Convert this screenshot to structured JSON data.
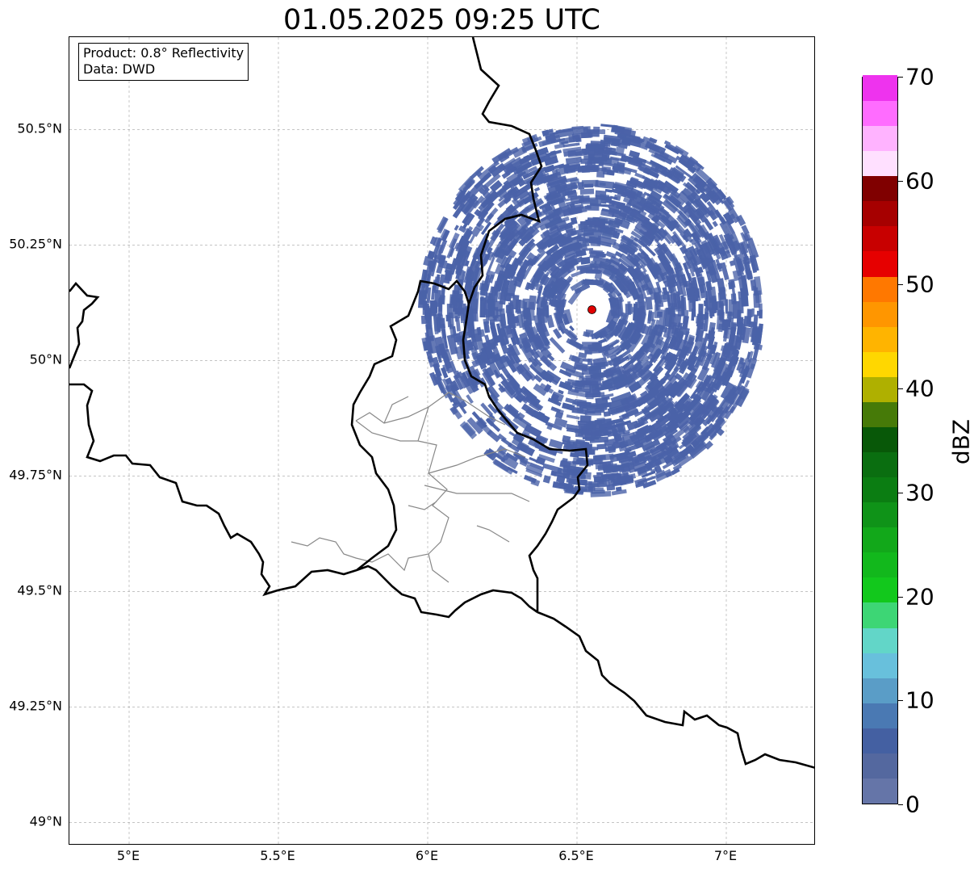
{
  "title": "01.05.2025 09:25 UTC",
  "product_box": {
    "product_line": "Product: 0.8° Reflectivity",
    "data_line": "Data: DWD"
  },
  "map": {
    "lon_range": [
      4.8,
      7.3
    ],
    "lat_range": [
      48.95,
      50.7
    ],
    "lat_ticks": [
      {
        "value": 49.0,
        "label": "49°N"
      },
      {
        "value": 49.25,
        "label": "49.25°N"
      },
      {
        "value": 49.5,
        "label": "49.5°N"
      },
      {
        "value": 49.75,
        "label": "49.75°N"
      },
      {
        "value": 50.0,
        "label": "50°N"
      },
      {
        "value": 50.25,
        "label": "50.25°N"
      },
      {
        "value": 50.5,
        "label": "50.5°N"
      }
    ],
    "lon_ticks": [
      {
        "value": 5.0,
        "label": "5°E"
      },
      {
        "value": 5.5,
        "label": "5.5°E"
      },
      {
        "value": 6.0,
        "label": "6°E"
      },
      {
        "value": 6.5,
        "label": "6.5°E"
      },
      {
        "value": 7.0,
        "label": "7°E"
      }
    ],
    "gridlines": true,
    "radar_site": {
      "lon": 6.55,
      "lat": 50.11,
      "color": "#e00000"
    },
    "echo_color": "#4a62a8"
  },
  "colorbar": {
    "unit": "dBZ",
    "min": 0,
    "max": 70,
    "step": 2.5,
    "colors": [
      "#6575a8",
      "#54689f",
      "#4460a2",
      "#4a79b3",
      "#5a9dc7",
      "#68c0dc",
      "#62d6c8",
      "#3dd675",
      "#12c81c",
      "#12b81c",
      "#12a81a",
      "#0f9318",
      "#0b7d12",
      "#0a6e10",
      "#085808",
      "#467a08",
      "#afb000",
      "#ffd700",
      "#ffb400",
      "#ff9600",
      "#ff7800",
      "#e60000",
      "#c80000",
      "#a60000",
      "#800000",
      "#ffe0ff",
      "#ffb3ff",
      "#ff6cff",
      "#ee33ee"
    ],
    "ticks": [
      {
        "value": 0,
        "label": "0"
      },
      {
        "value": 10,
        "label": "10"
      },
      {
        "value": 20,
        "label": "20"
      },
      {
        "value": 30,
        "label": "30"
      },
      {
        "value": 40,
        "label": "40"
      },
      {
        "value": 50,
        "label": "50"
      },
      {
        "value": 60,
        "label": "60"
      },
      {
        "value": 70,
        "label": "70"
      }
    ]
  }
}
